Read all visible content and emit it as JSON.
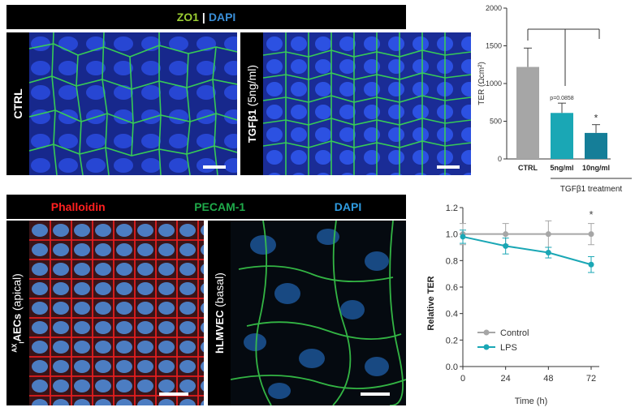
{
  "panel_a": {
    "header": {
      "zo1": "ZO1",
      "sep": "|",
      "dapi": "DAPI"
    },
    "label_ctrl": "CTRL",
    "label_tgf": "TGFβ1",
    "label_tgf_dose": "(5ng/ml)",
    "colors": {
      "zo1": "#9acd32",
      "dapi": "#3a8fd8",
      "nuclei": "#1f3fbf",
      "junction": "#39d353"
    }
  },
  "panel_b": {
    "header": {
      "phalloidin": "Phalloidin",
      "pecam": "PECAM-1",
      "dapi": "DAPI"
    },
    "label_aecs_sup": "AX",
    "label_aecs_sub": "I",
    "label_aecs_main": "AECs",
    "label_aecs_paren": "(apical)",
    "label_hlmvec": "hLMVEC",
    "label_hlmvec_paren": "(basal)",
    "colors": {
      "phalloidin": "#ff2020",
      "pecam": "#1faa4a",
      "dapi": "#2f9be0"
    }
  },
  "chart_data": [
    {
      "type": "bar",
      "categories": [
        "CTRL",
        "5ng/ml",
        "10ng/ml"
      ],
      "values": [
        1220,
        610,
        345
      ],
      "errors": [
        250,
        130,
        110
      ],
      "colors": [
        "#a6a6a6",
        "#1aa7b5",
        "#157e98"
      ],
      "ylabel": "TER (Ωcm²)",
      "yticks": [
        0,
        500,
        1000,
        1500,
        2000
      ],
      "ylim": [
        0,
        2000
      ],
      "xlabel_group": "TGFβ1 treatment",
      "annotations": [
        {
          "category": "5ng/ml",
          "text": "p=0.0858"
        },
        {
          "category": "10ng/ml",
          "text": "*"
        }
      ],
      "comparison_brackets": [
        "CTRL-5ng/ml",
        "CTRL-10ng/ml"
      ]
    },
    {
      "type": "line",
      "x": [
        0,
        24,
        48,
        72
      ],
      "xticks": [
        "0",
        "24",
        "48",
        "72"
      ],
      "xlabel": "Time (h)",
      "ylabel": "Relative TER",
      "yticks": [
        "0.0",
        "0.2",
        "0.4",
        "0.6",
        "0.8",
        "1.0",
        "1.2"
      ],
      "ylim": [
        0,
        1.2
      ],
      "series": [
        {
          "name": "Control",
          "values": [
            1.0,
            1.0,
            1.0,
            1.0
          ],
          "errors": [
            0.08,
            0.08,
            0.1,
            0.08
          ],
          "color": "#a6a6a6"
        },
        {
          "name": "LPS",
          "values": [
            0.98,
            0.91,
            0.86,
            0.77
          ],
          "errors": [
            0.05,
            0.06,
            0.04,
            0.06
          ],
          "color": "#1aa7b5"
        }
      ],
      "annotations": [
        {
          "x": 72,
          "text": "*"
        }
      ],
      "legend": "bottom-left"
    }
  ]
}
